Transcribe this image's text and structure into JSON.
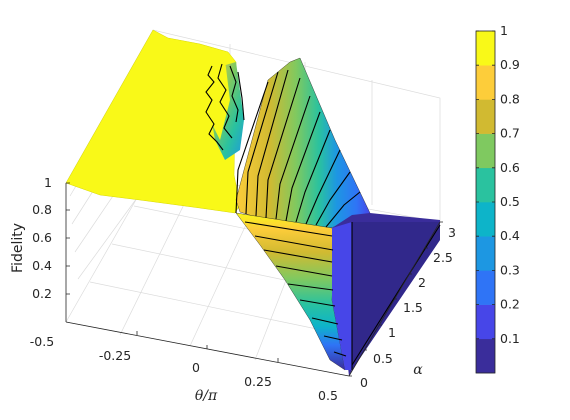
{
  "chart_data": {
    "type": "surface",
    "title": "",
    "zlabel": "Fidelity",
    "xlabel": "θ/π",
    "ylabel": "α",
    "x_ticks": [
      "-0.5",
      "-0.25",
      "0",
      "0.25",
      "0.5"
    ],
    "y_ticks": [
      "0",
      "0.5",
      "1",
      "1.5",
      "2",
      "2.5",
      "3"
    ],
    "z_ticks": [
      "0.2",
      "0.4",
      "0.6",
      "0.8",
      "1"
    ],
    "xlim": [
      -0.5,
      0.5
    ],
    "ylim": [
      0,
      3
    ],
    "zlim": [
      0,
      1
    ],
    "grid": true,
    "colormap": "parula",
    "colorbar": {
      "ticks": [
        "0.1",
        "0.2",
        "0.3",
        "0.4",
        "0.5",
        "0.6",
        "0.7",
        "0.8",
        "0.9",
        "1"
      ],
      "range": [
        0,
        1
      ],
      "levels": 10,
      "colors": [
        "#3a2d9b",
        "#4746e8",
        "#2f74f6",
        "#1d97e2",
        "#0db4c9",
        "#2ac29f",
        "#7fc960",
        "#d1ba31",
        "#fdcd3a",
        "#f9f918"
      ]
    },
    "surface_samples": {
      "alpha": [
        0,
        0.5,
        1,
        1.5,
        2,
        2.5,
        3
      ],
      "theta": [
        -0.5,
        -0.25,
        0,
        0.25,
        0.5
      ],
      "fidelity": [
        [
          1.0,
          1.0,
          0.98,
          0.02,
          0.02
        ],
        [
          1.0,
          1.0,
          0.95,
          0.05,
          0.02
        ],
        [
          1.0,
          1.0,
          0.9,
          0.1,
          0.03
        ],
        [
          1.0,
          1.0,
          0.85,
          0.15,
          0.05
        ],
        [
          1.0,
          0.98,
          0.75,
          0.2,
          0.08
        ],
        [
          1.0,
          0.95,
          0.7,
          0.25,
          0.1
        ],
        [
          1.0,
          0.92,
          0.65,
          0.3,
          0.12
        ]
      ]
    }
  }
}
